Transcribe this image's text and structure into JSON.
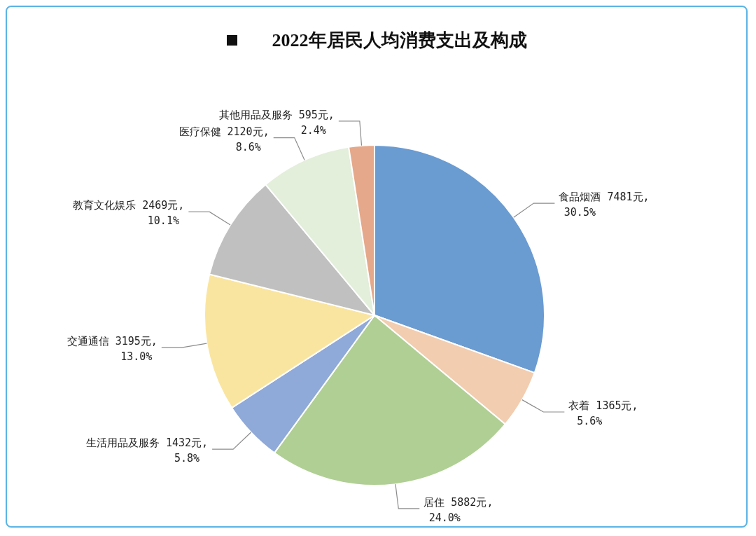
{
  "chart_data": {
    "type": "pie",
    "title": "2022年居民人均消费支出及构成",
    "categories": [
      "食品烟酒",
      "衣着",
      "居住",
      "生活用品及服务",
      "交通通信",
      "教育文化娱乐",
      "医疗保健",
      "其他用品及服务"
    ],
    "values": [
      7481,
      1365,
      5882,
      1432,
      3195,
      2469,
      2120,
      595
    ],
    "value_labels": [
      "7481元,\n30.5%",
      "1365元,\n5.6%",
      "5882元,\n24.0%",
      "1432元,\n5.8%",
      "3195元,\n13.0%",
      "2469元,\n10.1%",
      "2120元,\n8.6%",
      "595元,\n2.4%"
    ],
    "colors": [
      "#6a9bd1",
      "#f2cdb0",
      "#b0cf94",
      "#8fa9d9",
      "#fae5a0",
      "#c0c0c0",
      "#e3eedb",
      "#e5a88a"
    ],
    "legend": false
  }
}
